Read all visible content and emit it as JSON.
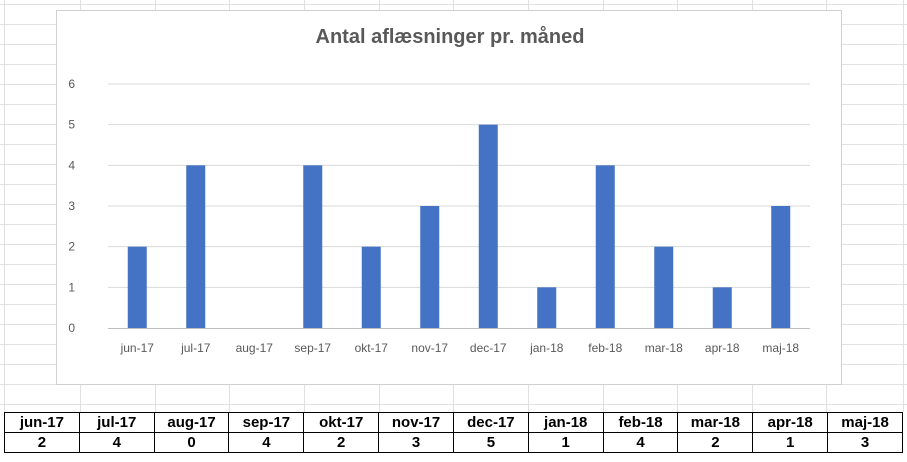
{
  "chart_data": {
    "type": "bar",
    "title": "Antal aflæsninger pr. måned",
    "categories": [
      "jun-17",
      "jul-17",
      "aug-17",
      "sep-17",
      "okt-17",
      "nov-17",
      "dec-17",
      "jan-18",
      "feb-18",
      "mar-18",
      "apr-18",
      "maj-18"
    ],
    "values": [
      2,
      4,
      0,
      4,
      2,
      3,
      5,
      1,
      4,
      2,
      1,
      3
    ],
    "ylim": [
      0,
      6
    ],
    "yticks": [
      "0",
      "1",
      "2",
      "3",
      "4",
      "5",
      "6"
    ],
    "xlabel": "",
    "ylabel": "",
    "grid": true,
    "bar_color": "#4472C4"
  },
  "table": {
    "headers": [
      "jun-17",
      "jul-17",
      "aug-17",
      "sep-17",
      "okt-17",
      "nov-17",
      "dec-17",
      "jan-18",
      "feb-18",
      "mar-18",
      "apr-18",
      "maj-18"
    ],
    "values": [
      "2",
      "4",
      "0",
      "4",
      "2",
      "3",
      "5",
      "1",
      "4",
      "2",
      "1",
      "3"
    ]
  }
}
